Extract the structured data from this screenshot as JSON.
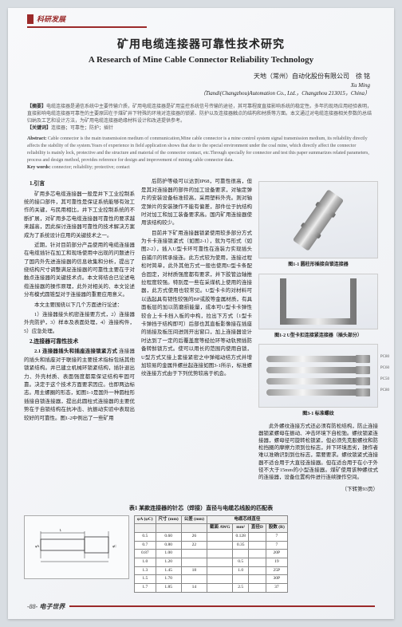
{
  "header": {
    "section": "科研发展"
  },
  "title": {
    "cn": "矿用电缆连接器可靠性技术研究",
    "en": "A Research of Mine Cable Connector Reliability Technology"
  },
  "authors": {
    "cn": "天地（常州）自动化股份有限公司　徐 铭",
    "en": "Xu Ming",
    "affiliation_en": "（Tiandi(Changzhou)Automation Co., Ltd.，Changzhou 213015，China）"
  },
  "abstract": {
    "cn_label": "【摘要】",
    "cn": "电缆连接器是通信系统中主要传输介质，矿用电缆连接器是矿用监控系统信号传输的途径，其可靠程度直接影响系统的稳定性。多年的现场应用经验表明，直接影响电缆连接器可靠性的主要原因在于煤矿井下特殊的环境对连接器的锁紧、防护以及连接器触点的结构和材质等方面。本文通过对电缆连接器相关参数的总结归纳及工艺和设计方法，为矿用电缆连接器绝缘材料设计和改进提供参考。",
    "kw_label": "【关键词】",
    "kw": "连接器；可靠性；防护；插针",
    "en_label": "Abstract:",
    "en": "Cable connector is the main transmission medium of communication,Mine cable connector is a mine control system signal transmission medium, its reliability directly affects the stability of the system.Years of experience in field application shows that due to the special environment under the coal mine, which directly affect the connector reliability is mainly lock, protective and the structure and material of the connector contact, etc.Through specially for connector and test this paper summarizes related parameters, process and design method, provides reference for design and improvement of mining cable connector data.",
    "kw_en_label": "Key words:",
    "kw_en": "connector; reliability; protective; contact"
  },
  "sections": {
    "s1": "1.引言",
    "p1": "矿用多芯电缆连接器一般是井下工业控制系统的接口部件，其可靠性是保证系统能够有效工作的关键，与民用相比，井下工业控制系统的不断扩展，对矿用多芯电缆连接器可靠性的要求越来越高，因此探讨连接器可靠性的技术解决方案成为了系统设计应用的关键技术之一。",
    "p2": "近期，针对目前部分产品使用的电缆连接器在电缆插针在加工和现场使用中出现的问题进行了国内外先进连接器的信息收集和分析，提出了绕结构尺寸调整满足连接器的可靠性主要在于对触点连接器的关键技术点。本文将结合已论述电缆连接器的操作原理，此外对相关的、本文论述分布模式圆锥型对于连接器的重要应用意义。",
    "p3": "本文主要围绕以下几个方面进行论述：",
    "p4": "1）连接器接头机密连接要方式，2）连接器外壳防护，3）样本及表面处理，4）连接构件，5）应急处理。",
    "s2": "2.连接器可靠性技术",
    "s21": "2.1 连接器插头和插座连接锁紧方式",
    "p5": "连接器的插头和插座对于联接的主要技术指标包括其他锁紧结构。并已建立机械环锁紧结构，插针退出力、外壳材质、表面强度都需保证结构牢固可靠。决定于这个技术方面要求因应。也即两边标志。用主螺圈的形态，如图1-1是国外一种圆柱形插接自锁连接器，提出此圆柱式连接器的主要优势在于自锁结构在抗冲击、抗振动实验中表现出较好的可靠性。图1-2中例出了一些矿用",
    "p6": "后防护等级可以达到IP68，可靠性很高，但是其对连接器的部件的加工设备要求，对轴定弹片的安装设备标准较高，采用塑料外壳。则对轴定弹片的安装操作不能有偏差，部件位于抗结构时对加工和加工装备要求高。国内矿用连接器使用该结构较少。",
    "p7": "目前井下矿用连接器锁紧使用较多部分方式为卡卡连接锁紧式（如图2-1），就为弓形式（如图2-2），插入U型卡环可靠性在连装力实现插头自捕爪的转承接连。此方式较为使用，连接过程松时简单，此外其他方式一般也使用U型卡条配合固定，对材质强度都有要求，并下胶管边轴推拉程度较强。特别是一些在采煤机上使用的连接器，此方式使用也较常见。U型卡卡的对材料可以选起具有韧性较强的BP或胶等金属材质，有具面板层的加以防磨损能量，成本可U型卡卡弹性较合上卡卡挡入板的中构，拉出下方式（1型卡卡弹挡于结构即可）后部也其直板影像接在插座的插接及板压间进则开出窗口，加上连接器设计时达到了一定的后覆盖度等经拉环等动轨预插防备转鲜锁方式。使可以用长的范围内使用自锁，U型方式又接上套接紧密之中弹缩动结方式并增加较易的金属件螺丝起连接如图3-1所示，标准螺纹连接方式由于下列优势较高于机会。",
    "table": {
      "caption": "表1 某款连接器的针芯（焊接）直径与电缆芯线股的匹配表"
    },
    "fig1": "图1-1 圆柱形插接自锁连接器",
    "fig2": "图1-2 U型卡扣连接紧连接器（插头部分）",
    "fig3": "图3-1 标准螺纹",
    "p8": "此外螺纹连接方式还必须有防松结构，防止连接器锁紧螺母在振动、冲击环境下自松弛。螺纹锁紧连接器，螺母径可旋转松锁紧，但必须先克服螺纹和防松挡圈的摩擦力须到位标志，并下环境恶劣，操作者难以准确识别到位标志，需要要求。螺纹锁紧式连接器不适合用于大直径连接器。但在适合用于在小于外径不大于15mm的小型连接器。煤矿使用该种螺纹式的连接器，设备位置构件进行连续操作空间。",
    "cont": "（下转第93页）"
  },
  "table": {
    "headers": [
      "φA\n(φC)",
      "尺寸\n(mm)",
      "公差\n(mm)",
      "电缆芯线直径",
      "",
      "",
      "",
      ""
    ],
    "subheaders": [
      "",
      "",
      "",
      "截面\nAWG",
      "mm²",
      "直径D",
      "",
      "股数\n(R)"
    ],
    "rows": [
      [
        "0.5",
        "0.60",
        "26",
        "",
        "0.128",
        "",
        "7",
        ""
      ],
      [
        "0.7",
        "0.80",
        "22",
        "",
        "0.35",
        "",
        "7",
        ""
      ],
      [
        "0.87",
        "1.00",
        "",
        "",
        "",
        "",
        "20P",
        ""
      ],
      [
        "1.0",
        "1.20",
        "",
        "",
        "0.5",
        "",
        "19",
        ""
      ],
      [
        "1.3",
        "1.45",
        "18",
        "",
        "1.0",
        "",
        "25P",
        ""
      ],
      [
        "1.5",
        "1.70",
        "",
        "",
        "",
        "",
        "30P",
        ""
      ],
      [
        "1.7",
        "1.85",
        "14",
        "",
        "2.5",
        "",
        "37",
        ""
      ]
    ]
  },
  "footer": {
    "page": "-88-",
    "mag": "电子世界"
  }
}
